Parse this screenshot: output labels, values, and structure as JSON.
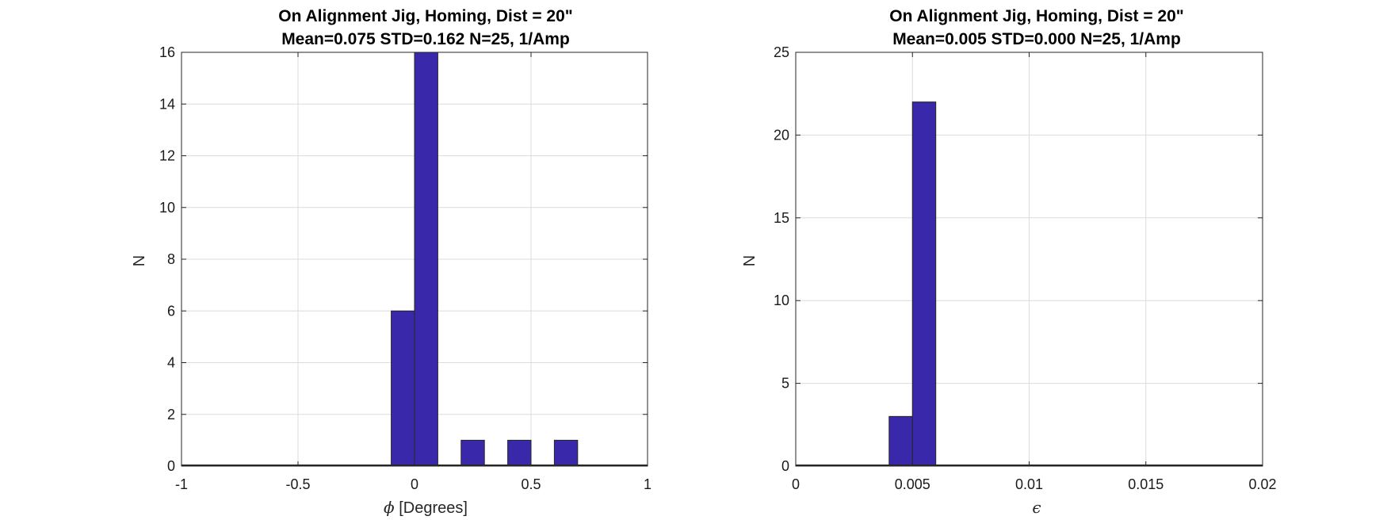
{
  "chart_data": [
    {
      "type": "bar",
      "title_line1": "On Alignment Jig, Homing, Dist = 20\"",
      "title_line2": "Mean=0.075 STD=0.162 N=25, 1/Amp",
      "xlabel_symbol": "ϕ",
      "xlabel_text": "[Degrees]",
      "ylabel": "N",
      "xlim": [
        -1,
        1
      ],
      "ylim": [
        0,
        16
      ],
      "xticks": [
        -1,
        -0.5,
        0,
        0.5,
        1
      ],
      "xtick_labels": [
        "-1",
        "-0.5",
        "0",
        "0.5",
        "1"
      ],
      "yticks": [
        0,
        2,
        4,
        6,
        8,
        10,
        12,
        14,
        16
      ],
      "ytick_labels": [
        "0",
        "2",
        "4",
        "6",
        "8",
        "10",
        "12",
        "14",
        "16"
      ],
      "bin_edges": [
        -1,
        -0.9,
        -0.8,
        -0.7,
        -0.6,
        -0.5,
        -0.4,
        -0.3,
        -0.2,
        -0.1,
        0,
        0.1,
        0.2,
        0.3,
        0.4,
        0.5,
        0.6,
        0.7,
        0.8,
        0.9,
        1
      ],
      "counts": [
        0,
        0,
        0,
        0,
        0,
        0,
        0,
        0,
        0,
        6,
        16,
        0,
        1,
        0,
        1,
        0,
        1,
        0,
        0,
        0
      ],
      "grid": true,
      "bar_color": "#3a28aa"
    },
    {
      "type": "bar",
      "title_line1": "On Alignment Jig, Homing, Dist = 20\"",
      "title_line2": "Mean=0.005 STD=0.000 N=25, 1/Amp",
      "xlabel_symbol": "ϵ",
      "xlabel_text": "",
      "ylabel": "N",
      "xlim": [
        0,
        0.02
      ],
      "ylim": [
        0,
        25
      ],
      "xticks": [
        0,
        0.005,
        0.01,
        0.015,
        0.02
      ],
      "xtick_labels": [
        "0",
        "0.005",
        "0.01",
        "0.015",
        "0.02"
      ],
      "yticks": [
        0,
        5,
        10,
        15,
        20,
        25
      ],
      "ytick_labels": [
        "0",
        "5",
        "10",
        "15",
        "20",
        "25"
      ],
      "bin_edges": [
        0,
        0.001,
        0.002,
        0.003,
        0.004,
        0.005,
        0.006,
        0.007,
        0.008,
        0.009,
        0.01,
        0.011,
        0.012,
        0.013,
        0.014,
        0.015,
        0.016,
        0.017,
        0.018,
        0.019,
        0.02
      ],
      "counts": [
        0,
        0,
        0,
        0,
        3,
        22,
        0,
        0,
        0,
        0,
        0,
        0,
        0,
        0,
        0,
        0,
        0,
        0,
        0,
        0
      ],
      "grid": true,
      "bar_color": "#3a28aa"
    }
  ]
}
